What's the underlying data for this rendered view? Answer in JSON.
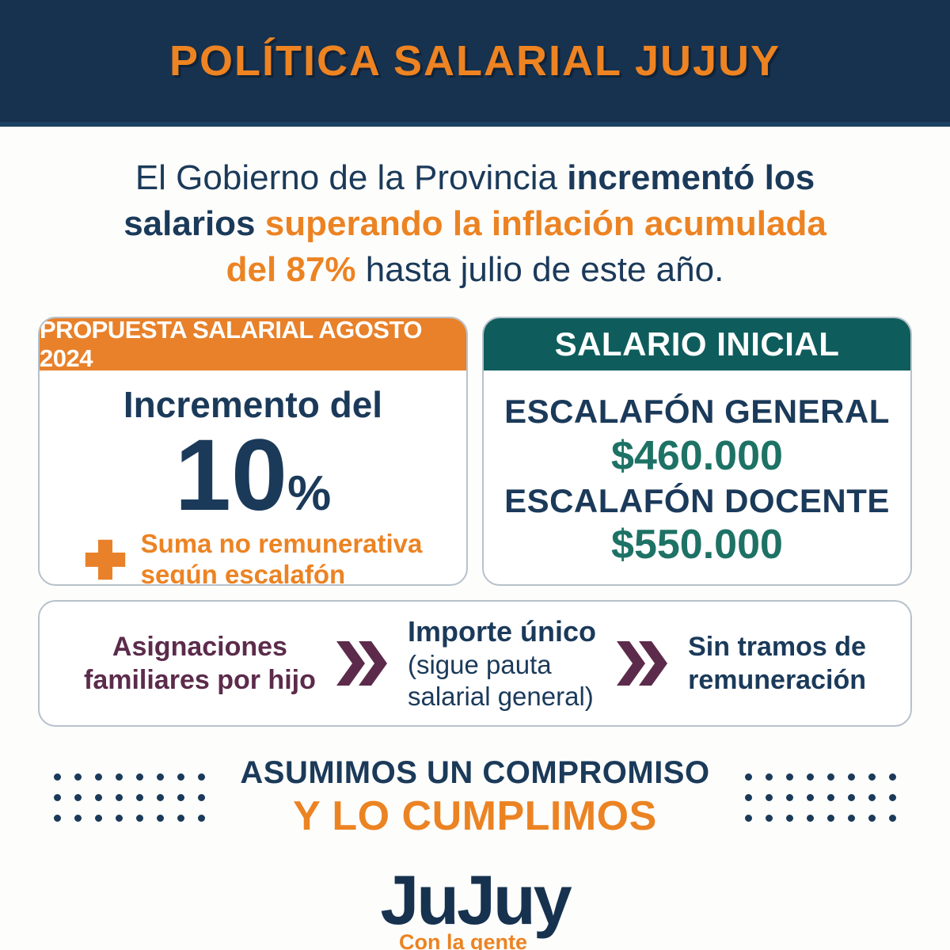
{
  "colors": {
    "navy_bg": "#16324f",
    "navy_text": "#1b3a5a",
    "orange": "#ec8323",
    "orange_bar": "#e8812a",
    "teal_bar": "#0e5d5c",
    "teal_value": "#1d7265",
    "maroon": "#5c2b4b",
    "card_border": "#b7c1cb"
  },
  "header": {
    "title": "POLÍTICA SALARIAL JUJUY"
  },
  "intro": {
    "lines": [
      [
        {
          "t": "El Gobierno de la Provincia "
        },
        {
          "t": "incrementó los"
        }
      ],
      [
        {
          "t": "salarios "
        },
        {
          "t": "superando la inflación acumulada"
        }
      ],
      [
        {
          "t": "del 87% "
        },
        {
          "t": "hasta julio de este año."
        }
      ]
    ]
  },
  "proposal_card": {
    "header": "PROPUESTA SALARIAL AGOSTO 2024",
    "increment_label": "Incremento del",
    "increment_number": "10",
    "increment_unit": "%",
    "plus_icon": "plus-icon",
    "note_line1": "Suma no remunerativa",
    "note_line2": "según escalafón"
  },
  "salary_card": {
    "header": "SALARIO INICIAL",
    "items": [
      {
        "label": "ESCALAFÓN GENERAL",
        "value": "$460.000"
      },
      {
        "label": "ESCALAFÓN DOCENTE",
        "value": "$550.000"
      }
    ]
  },
  "flow_card": {
    "step1_line1": "Asignaciones",
    "step1_line2": "familiares por hijo",
    "chevron_icon": "double-chevron-right-icon",
    "step2_title": "Importe único",
    "step2_sub1": "(sigue pauta",
    "step2_sub2": "salarial general)",
    "step3_line1": "Sin tramos de",
    "step3_line2": "remuneración"
  },
  "commitment": {
    "line1": "ASUMIMOS UN COMPROMISO",
    "line2": "Y LO CUMPLIMOS",
    "dot_grid": {
      "rows": 3,
      "cols": 8
    }
  },
  "logo": {
    "wordmark": "JuJuy",
    "tagline": "Con la gente"
  }
}
